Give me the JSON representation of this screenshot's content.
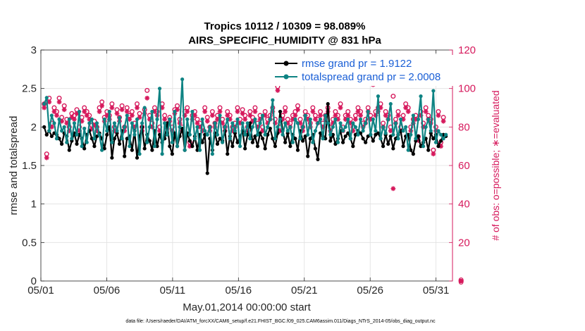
{
  "chart_data": {
    "type": "line",
    "title_line1": "Tropics 10112 / 10309 = 98.089%",
    "title_line2": "AIRS_SPECIFIC_HUMIDITY @ 831 hPa",
    "xlabel": "May.01,2014 00:00:00 start",
    "ylabel_left": "rmse and totalspread",
    "ylabel_right": "# of obs: o=possible; ∗=evaluated",
    "footer": "data file: /Users/raeder/DAI/ATM_forcXX/CAM6_setup/f.e21.FHIST_BGC.f09_025.CAM6assim.011/Diags_NTrS_2014-05/obs_diag_output.nc",
    "xlim": [
      0,
      31.25
    ],
    "ylim_left": [
      0,
      3
    ],
    "ylim_right": [
      0,
      120
    ],
    "x_tick_labels": [
      "05/01",
      "05/06",
      "05/11",
      "05/16",
      "05/21",
      "05/26",
      "05/31"
    ],
    "x_tick_positions": [
      0,
      5,
      10,
      15,
      20,
      25,
      30
    ],
    "y_left_ticks": [
      "0",
      "0.5",
      "1",
      "1.5",
      "2",
      "2.5",
      "3"
    ],
    "y_left_tick_values": [
      0,
      0.5,
      1,
      1.5,
      2,
      2.5,
      3
    ],
    "y_right_ticks": [
      "0",
      "20",
      "40",
      "60",
      "80",
      "100",
      "120"
    ],
    "y_right_tick_values": [
      0,
      20,
      40,
      60,
      80,
      100,
      120
    ],
    "colors": {
      "rmse": "#000000",
      "spread": "#0e8383",
      "obs": "#d6195c",
      "legend_text": "#1a5fd6",
      "grid": "#e0e0e0"
    },
    "series": [
      {
        "name": "rmse grand pr = 1.9122",
        "key": "rmse",
        "values": [
          2.0,
          1.9,
          1.95,
          1.88,
          1.92,
          1.9,
          1.85,
          1.78,
          1.92,
          1.88,
          1.7,
          1.82,
          1.92,
          1.78,
          1.9,
          1.85,
          1.72,
          1.9,
          1.95,
          1.85,
          1.75,
          1.88,
          1.92,
          1.85,
          1.72,
          1.9,
          2.0,
          1.6,
          1.85,
          1.92,
          1.78,
          1.95,
          1.62,
          1.85,
          1.88,
          1.7,
          1.95,
          1.6,
          1.88,
          2.0,
          1.72,
          1.9,
          1.82,
          1.7,
          1.95,
          1.75,
          1.9,
          1.8,
          1.85,
          2.05,
          1.75,
          1.65,
          1.92,
          1.75,
          1.88,
          1.98,
          1.7,
          1.92,
          1.82,
          1.75,
          1.88,
          1.7,
          1.9,
          1.8,
          1.9,
          1.4,
          1.85,
          1.7,
          1.92,
          1.78,
          1.85,
          1.82,
          1.95,
          1.65,
          1.88,
          1.75,
          1.92,
          1.8,
          1.88,
          1.95,
          1.72,
          1.9,
          2.05,
          1.8,
          1.88,
          1.75,
          1.92,
          1.85,
          1.72,
          1.9,
          1.98,
          1.85,
          1.75,
          1.92,
          2.2,
          1.95,
          1.8,
          1.92,
          1.75,
          1.9,
          1.85,
          1.7,
          1.95,
          1.82,
          1.88,
          1.62,
          1.85,
          1.9,
          1.72,
          1.58,
          1.92,
          1.88,
          1.85,
          2.3,
          1.82,
          1.9,
          1.78,
          1.85,
          1.95,
          1.8,
          1.88,
          1.92,
          1.85,
          1.75,
          1.9,
          1.95,
          1.92,
          1.85,
          1.8,
          1.88,
          1.9,
          1.82,
          1.9,
          1.92,
          1.85,
          1.75,
          1.9,
          1.78,
          1.88,
          1.72,
          1.85,
          1.9,
          1.95,
          1.75,
          1.88,
          1.9,
          1.7,
          1.65,
          1.82,
          1.88,
          1.75,
          1.8,
          1.85,
          1.7,
          1.92,
          1.85,
          1.9,
          1.75,
          1.82,
          1.9,
          1.88
        ],
        "style": "solid-line-dots"
      },
      {
        "name": "totalspread grand pr = 2.0008",
        "key": "spread",
        "values": [
          2.3,
          2.38,
          1.95,
          2.15,
          2.05,
          1.85,
          2.1,
          1.95,
          2.0,
          1.8,
          2.1,
          1.85,
          2.05,
          1.9,
          2.2,
          1.75,
          1.98,
          1.8,
          2.05,
          2.1,
          1.85,
          2.05,
          1.9,
          1.7,
          2.1,
          1.95,
          2.2,
          1.8,
          2.05,
          1.95,
          2.12,
          1.85,
          2.0,
          2.15,
          1.75,
          2.05,
          1.9,
          2.1,
          1.65,
          2.05,
          2.25,
          1.8,
          2.0,
          2.2,
          1.75,
          2.1,
          2.5,
          1.65,
          2.05,
          1.9,
          2.1,
          1.8,
          2.2,
          1.75,
          2.0,
          2.62,
          1.7,
          2.1,
          1.9,
          2.2,
          1.85,
          2.0,
          1.7,
          2.1,
          1.95,
          1.9,
          2.0,
          1.65,
          2.05,
          1.9,
          2.15,
          1.8,
          2.0,
          2.1,
          1.85,
          2.05,
          1.95,
          2.1,
          1.75,
          2.05,
          1.9,
          2.05,
          1.85,
          2.0,
          2.1,
          1.9,
          2.05,
          2.15,
          1.9,
          2.0,
          2.1,
          2.35,
          1.85,
          2.0,
          2.1,
          1.9,
          2.05,
          1.95,
          2.0,
          1.8,
          2.1,
          2.05,
          1.85,
          2.0,
          2.15,
          1.9,
          2.1,
          1.8,
          1.95,
          2.05,
          2.1,
          1.85,
          2.15,
          2.05,
          1.9,
          2.0,
          2.1,
          1.8,
          2.05,
          1.95,
          2.0,
          2.1,
          1.85,
          2.05,
          2.0,
          1.9,
          2.1,
          1.95,
          2.05,
          2.2,
          1.9,
          2.1,
          1.95,
          2.4,
          1.85,
          2.0,
          1.92,
          2.1,
          2.3,
          1.9,
          2.05,
          1.85,
          2.1,
          1.95,
          2.0,
          1.7,
          1.9,
          2.15,
          1.85,
          2.1,
          2.4,
          1.75,
          2.0,
          2.1,
          1.95,
          2.47,
          1.8,
          1.95,
          1.9,
          1.85,
          1.9
        ],
        "style": "solid-line-dots"
      },
      {
        "name": "obs possible",
        "key": "possible",
        "axis": "right",
        "values": [
          92,
          66,
          95,
          82,
          90,
          88,
          95,
          85,
          91,
          84,
          80,
          87,
          86,
          89,
          80,
          85,
          90,
          88,
          86,
          81,
          83,
          80,
          90,
          93,
          85,
          88,
          86,
          92,
          80,
          89,
          85,
          91,
          80,
          90,
          86,
          88,
          82,
          92,
          87,
          80,
          89,
          99,
          86,
          82,
          90,
          88,
          80,
          92,
          86,
          81,
          85,
          80,
          89,
          91,
          84,
          80,
          88,
          90,
          72,
          86,
          88,
          84,
          82,
          80,
          90,
          85,
          80,
          88,
          82,
          86,
          90,
          84,
          80,
          88,
          86,
          80,
          82,
          90,
          84,
          89,
          86,
          80,
          88,
          85,
          90,
          82,
          86,
          80,
          88,
          84,
          86,
          90,
          84,
          101,
          80,
          86,
          90,
          84,
          82,
          86,
          88,
          91,
          84,
          80,
          88,
          86,
          82,
          90,
          86,
          84,
          88,
          82,
          86,
          90,
          80,
          84,
          88,
          86,
          92,
          80,
          86,
          88,
          84,
          80,
          86,
          90,
          88,
          82,
          84,
          90,
          86,
          104,
          88,
          90,
          92,
          82,
          88,
          86,
          80,
          96,
          84,
          88,
          80,
          86,
          92,
          90,
          80,
          84,
          86,
          75,
          88,
          82,
          90,
          86,
          84,
          68,
          80,
          88,
          72,
          85
        ],
        "style": "open-circle"
      },
      {
        "name": "obs evaluated",
        "key": "evaluated",
        "axis": "right",
        "values": [
          90,
          64,
          93,
          80,
          88,
          86,
          93,
          83,
          89,
          82,
          78,
          85,
          84,
          87,
          78,
          83,
          88,
          86,
          84,
          79,
          81,
          78,
          88,
          91,
          83,
          86,
          84,
          90,
          78,
          87,
          83,
          89,
          78,
          88,
          84,
          86,
          80,
          90,
          85,
          78,
          87,
          95,
          84,
          80,
          88,
          86,
          78,
          90,
          84,
          79,
          83,
          78,
          87,
          89,
          82,
          78,
          86,
          88,
          70,
          84,
          86,
          82,
          80,
          78,
          88,
          83,
          78,
          86,
          80,
          84,
          88,
          82,
          78,
          86,
          84,
          78,
          80,
          88,
          82,
          87,
          84,
          78,
          86,
          83,
          88,
          80,
          84,
          78,
          86,
          82,
          84,
          88,
          82,
          99,
          78,
          84,
          88,
          82,
          80,
          84,
          86,
          89,
          82,
          78,
          86,
          84,
          80,
          88,
          84,
          82,
          86,
          80,
          84,
          88,
          78,
          82,
          86,
          84,
          90,
          78,
          84,
          86,
          82,
          78,
          84,
          88,
          86,
          80,
          82,
          88,
          84,
          102,
          86,
          88,
          90,
          80,
          86,
          84,
          78,
          48,
          82,
          86,
          78,
          84,
          90,
          88,
          78,
          82,
          84,
          73,
          86,
          80,
          88,
          84,
          82,
          66,
          78,
          86,
          70,
          83
        ],
        "style": "asterisk"
      }
    ]
  }
}
